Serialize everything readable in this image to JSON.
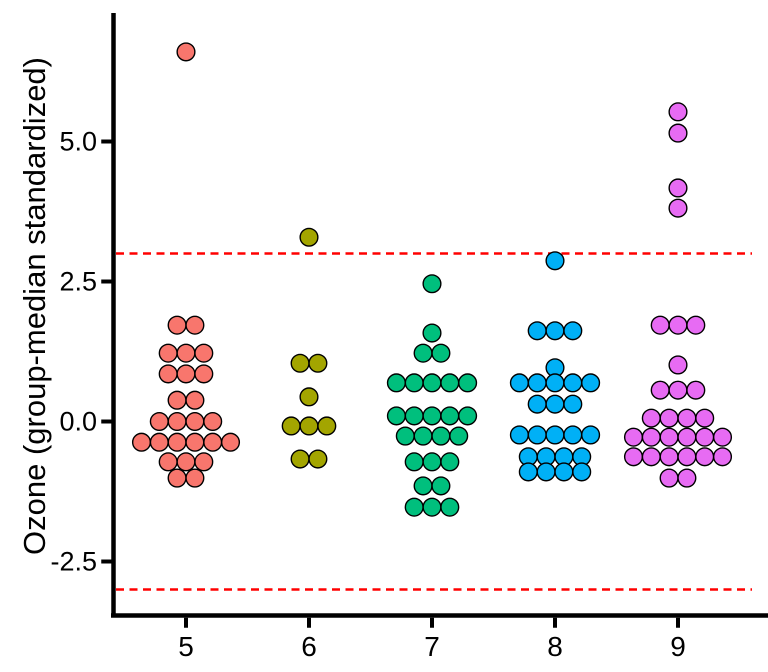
{
  "chart_data": {
    "type": "scatter",
    "subtype": "grouped-beeswarm-dotplot",
    "title": "",
    "xlabel": "",
    "ylabel": "Ozone (group-median standardized)",
    "x_tick_labels": [
      "5",
      "6",
      "7",
      "8",
      "9"
    ],
    "y_ticks": [
      5.0,
      2.5,
      0.0,
      -2.5
    ],
    "y_tick_labels": [
      "5.0",
      "2.5",
      "0.0",
      "-2.5"
    ],
    "ylim": [
      -3.6,
      7.3
    ],
    "grid": "off",
    "legend": "none",
    "reference_lines": [
      {
        "name": "upper-outlier-threshold",
        "value": 3.0
      },
      {
        "name": "lower-outlier-threshold",
        "value": -3.0
      }
    ],
    "reference_line_style": {
      "color": "#FF0000",
      "dash": "dashed"
    },
    "point_style": {
      "stroke": "#000000"
    },
    "groups": [
      {
        "label": "5",
        "color": "#F8766D",
        "rows": [
          {
            "value": 6.6,
            "offsets": [
              0
            ]
          },
          {
            "value": 1.72,
            "offsets": [
              -0.5,
              0.5
            ]
          },
          {
            "value": 1.22,
            "offsets": [
              -1,
              0,
              1
            ]
          },
          {
            "value": 0.85,
            "offsets": [
              -1,
              0,
              1
            ]
          },
          {
            "value": 0.38,
            "offsets": [
              -0.5,
              0.5
            ]
          },
          {
            "value": 0.0,
            "offsets": [
              -1.5,
              -0.5,
              0.5,
              1.5
            ]
          },
          {
            "value": -0.37,
            "offsets": [
              -2.5,
              -1.5,
              -0.5,
              0.5,
              1.5,
              2.5
            ]
          },
          {
            "value": -0.72,
            "offsets": [
              -1,
              0,
              1
            ]
          },
          {
            "value": -1.01,
            "offsets": [
              -0.5,
              0.5
            ]
          }
        ]
      },
      {
        "label": "6",
        "color": "#A3A500",
        "rows": [
          {
            "value": 3.29,
            "offsets": [
              0
            ]
          },
          {
            "value": 1.04,
            "offsets": [
              -0.5,
              0.5
            ]
          },
          {
            "value": 0.44,
            "offsets": [
              0
            ]
          },
          {
            "value": -0.08,
            "offsets": [
              -1,
              0,
              1
            ]
          },
          {
            "value": -0.67,
            "offsets": [
              -0.5,
              0.5
            ]
          }
        ]
      },
      {
        "label": "7",
        "color": "#00BF7D",
        "rows": [
          {
            "value": 2.46,
            "offsets": [
              0
            ]
          },
          {
            "value": 1.58,
            "offsets": [
              0
            ]
          },
          {
            "value": 1.22,
            "offsets": [
              -0.5,
              0.5
            ]
          },
          {
            "value": 0.69,
            "offsets": [
              -2,
              -1,
              0,
              1,
              2
            ]
          },
          {
            "value": 0.1,
            "offsets": [
              -2,
              -1,
              0,
              1,
              2
            ]
          },
          {
            "value": -0.26,
            "offsets": [
              -1.5,
              -0.5,
              0.5,
              1.5
            ]
          },
          {
            "value": -0.72,
            "offsets": [
              -1,
              0,
              1
            ]
          },
          {
            "value": -1.15,
            "offsets": [
              -0.5,
              0.5
            ]
          },
          {
            "value": -1.53,
            "offsets": [
              -1,
              0,
              1
            ]
          }
        ]
      },
      {
        "label": "8",
        "color": "#00B0F6",
        "rows": [
          {
            "value": 2.87,
            "offsets": [
              0
            ]
          },
          {
            "value": 1.62,
            "offsets": [
              -1,
              0,
              1
            ]
          },
          {
            "value": 0.96,
            "offsets": [
              0
            ]
          },
          {
            "value": 0.69,
            "offsets": [
              -2,
              -1,
              0,
              1,
              2
            ]
          },
          {
            "value": 0.31,
            "offsets": [
              -1,
              0,
              1
            ]
          },
          {
            "value": -0.24,
            "offsets": [
              -2,
              -1,
              0,
              1,
              2
            ]
          },
          {
            "value": -0.63,
            "offsets": [
              -1.5,
              -0.5,
              0.5,
              1.5
            ]
          },
          {
            "value": -0.9,
            "offsets": [
              -1.5,
              -0.5,
              0.5,
              1.5
            ]
          }
        ]
      },
      {
        "label": "9",
        "color": "#E76BF3",
        "rows": [
          {
            "value": 5.53,
            "offsets": [
              0
            ]
          },
          {
            "value": 5.15,
            "offsets": [
              0
            ]
          },
          {
            "value": 4.17,
            "offsets": [
              0
            ]
          },
          {
            "value": 3.81,
            "offsets": [
              0
            ]
          },
          {
            "value": 1.72,
            "offsets": [
              -1,
              0,
              1
            ]
          },
          {
            "value": 1.01,
            "offsets": [
              0
            ]
          },
          {
            "value": 0.56,
            "offsets": [
              -1,
              0,
              1
            ]
          },
          {
            "value": 0.06,
            "offsets": [
              -1.5,
              -0.5,
              0.5,
              1.5
            ]
          },
          {
            "value": -0.28,
            "offsets": [
              -2.5,
              -1.5,
              -0.5,
              0.5,
              1.5,
              2.5
            ]
          },
          {
            "value": -0.63,
            "offsets": [
              -2.5,
              -1.5,
              -0.5,
              0.5,
              1.5,
              2.5
            ]
          },
          {
            "value": -1.01,
            "offsets": [
              -0.5,
              0.5
            ]
          }
        ]
      }
    ]
  }
}
